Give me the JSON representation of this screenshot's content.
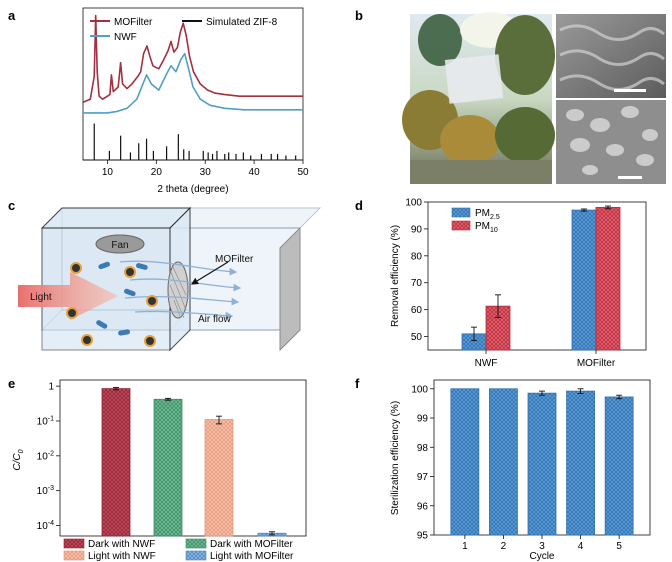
{
  "panels": {
    "a": "a",
    "b": "b",
    "c": "c",
    "d": "d",
    "e": "e",
    "f": "f"
  },
  "colors": {
    "mofilter": "#a3303f",
    "nwf": "#4f9fc8",
    "simulated": "#111111",
    "bar_blue": "#5b9bd5",
    "bar_red": "#e55b6a",
    "dark_nwf": "#c04a5b",
    "dark_mof": "#5fb58e",
    "light_nwf": "#f6b9a0",
    "light_mof": "#7cb1e0"
  },
  "chart_data": [
    {
      "id": "a",
      "type": "line",
      "xlabel": "2 theta (degree)",
      "xlim": [
        5,
        50
      ],
      "xticks": [
        10,
        20,
        30,
        40,
        50
      ],
      "legend": [
        "MOFilter",
        "NWF",
        "Simulated ZIF-8"
      ],
      "legend_placement": "top",
      "series": [
        {
          "name": "MOFilter",
          "x": [
            5,
            6.5,
            7.3,
            7.6,
            7.9,
            8.3,
            9,
            10.5,
            10.8,
            11.2,
            12.2,
            12.7,
            13.1,
            14,
            15,
            16.2,
            16.8,
            17.4,
            18.1,
            18.6,
            19.3,
            20.5,
            21.5,
            22.4,
            23,
            23.6,
            24.3,
            24.9,
            25.5,
            26.1,
            26.8,
            27.6,
            29,
            30.5,
            32,
            34,
            37,
            40,
            43,
            46,
            50
          ],
          "y": [
            0.38,
            0.4,
            0.55,
            0.95,
            0.58,
            0.42,
            0.4,
            0.43,
            0.56,
            0.45,
            0.48,
            0.64,
            0.5,
            0.47,
            0.5,
            0.55,
            0.58,
            0.7,
            0.75,
            0.69,
            0.62,
            0.6,
            0.66,
            0.72,
            0.78,
            0.71,
            0.74,
            0.84,
            0.9,
            0.82,
            0.68,
            0.58,
            0.5,
            0.46,
            0.44,
            0.43,
            0.42,
            0.42,
            0.42,
            0.42,
            0.42
          ]
        },
        {
          "name": "NWF",
          "x": [
            5,
            8,
            10,
            12,
            14,
            16,
            17,
            18,
            19,
            20.5,
            22,
            23,
            24,
            25,
            25.8,
            26.6,
            27.5,
            29,
            31,
            34,
            38,
            42,
            46,
            50
          ],
          "y": [
            0.31,
            0.31,
            0.31,
            0.32,
            0.34,
            0.4,
            0.48,
            0.56,
            0.5,
            0.46,
            0.56,
            0.62,
            0.58,
            0.66,
            0.7,
            0.6,
            0.48,
            0.4,
            0.36,
            0.34,
            0.33,
            0.33,
            0.33,
            0.33
          ]
        },
        {
          "name": "Simulated ZIF-8",
          "x": [
            7.3,
            10.4,
            12.7,
            14.7,
            16.4,
            18.0,
            19.4,
            22.1,
            24.5,
            25.6,
            26.7,
            29.6,
            30.6,
            31.5,
            32.4,
            34.0,
            34.8,
            36.3,
            37.8,
            39.3,
            41.5,
            43.5,
            44.8,
            46.5,
            48.5
          ],
          "y": [
            0.24,
            0.06,
            0.16,
            0.05,
            0.11,
            0.14,
            0.06,
            0.09,
            0.17,
            0.07,
            0.06,
            0.06,
            0.05,
            0.04,
            0.06,
            0.04,
            0.05,
            0.04,
            0.05,
            0.03,
            0.04,
            0.04,
            0.04,
            0.03,
            0.03
          ]
        }
      ]
    },
    {
      "id": "d",
      "type": "bar",
      "categories": [
        "NWF",
        "MOFilter"
      ],
      "ylabel": "Removal efficiency (%)",
      "ylim": [
        45,
        100
      ],
      "yticks": [
        50,
        60,
        70,
        80,
        90,
        100
      ],
      "legend_placement": "top-left",
      "series": [
        {
          "name_main": "PM",
          "name_sub": "2.5",
          "values": [
            51,
            97
          ],
          "errors": [
            2.5,
            0.4
          ]
        },
        {
          "name_main": "PM",
          "name_sub": "10",
          "values": [
            61.3,
            98
          ],
          "errors": [
            4.2,
            0.5
          ]
        }
      ]
    },
    {
      "id": "e",
      "type": "bar",
      "ylabel_main": "C/C",
      "ylabel_sub": "0",
      "log_scale": true,
      "ylim": [
        5e-05,
        1.5
      ],
      "yticks": [
        {
          "value": 1,
          "base": "1",
          "exp": ""
        },
        {
          "value": 0.1,
          "base": "10",
          "exp": "-1"
        },
        {
          "value": 0.01,
          "base": "10",
          "exp": "-2"
        },
        {
          "value": 0.001,
          "base": "10",
          "exp": "-3"
        },
        {
          "value": 0.0001,
          "base": "10",
          "exp": "-4"
        }
      ],
      "categories": [
        "Dark with NWF",
        "Dark with MOFilter",
        "Light with NWF",
        "Light with MOFilter"
      ],
      "values": [
        0.85,
        0.42,
        0.11,
        6e-05
      ],
      "errors_rel": [
        0.08,
        0.06,
        0.25,
        0.1
      ],
      "legend_placement": "bottom"
    },
    {
      "id": "f",
      "type": "bar",
      "categories": [
        "1",
        "2",
        "3",
        "4",
        "5"
      ],
      "values": [
        100.0,
        100.0,
        99.85,
        99.92,
        99.72
      ],
      "errors": [
        0.0,
        0.0,
        0.07,
        0.08,
        0.06
      ],
      "xlabel": "Cycle",
      "ylabel": "Sterilization efficiency (%)",
      "ylim": [
        95,
        100.3
      ],
      "yticks": [
        95,
        96,
        97,
        98,
        99,
        100
      ]
    }
  ],
  "panel_c": {
    "fan": "Fan",
    "light": "Light",
    "mofilter": "MOFilter",
    "air_flow": "Air flow"
  }
}
